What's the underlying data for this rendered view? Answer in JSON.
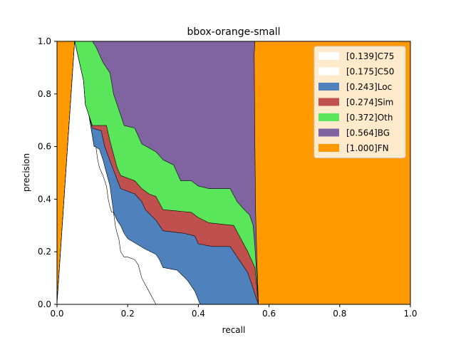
{
  "chart_data": {
    "type": "area",
    "title": "bbox-orange-small",
    "xlabel": "recall",
    "ylabel": "precision",
    "xlim": [
      0,
      1
    ],
    "ylim": [
      0,
      1
    ],
    "xticks": [
      "0.0",
      "0.2",
      "0.4",
      "0.6",
      "0.8",
      "1.0"
    ],
    "yticks": [
      "0.0",
      "0.2",
      "0.4",
      "0.6",
      "0.8",
      "1.0"
    ],
    "grid": false,
    "legend_position": "top-right",
    "series": [
      {
        "name": "[1.000]FN",
        "color": "#ff9900",
        "points": [
          [
            0.0,
            1.0
          ],
          [
            1.0,
            1.0
          ],
          [
            1.0,
            0.0
          ],
          [
            0.0,
            0.0
          ]
        ]
      },
      {
        "name": "[0.564]BG",
        "color": "#8064a2",
        "points": [
          [
            0.05,
            1.0
          ],
          [
            0.56,
            1.0
          ],
          [
            0.558,
            0.95
          ],
          [
            0.56,
            0.6
          ],
          [
            0.562,
            0.35
          ],
          [
            0.566,
            0.15
          ],
          [
            0.57,
            0.0
          ],
          [
            0.0,
            0.0
          ]
        ]
      },
      {
        "name": "[0.372]Oth",
        "color": "#5ae65a",
        "points": [
          [
            0.05,
            1.0
          ],
          [
            0.1,
            1.0
          ],
          [
            0.11,
            0.98
          ],
          [
            0.13,
            0.92
          ],
          [
            0.15,
            0.88
          ],
          [
            0.16,
            0.8
          ],
          [
            0.17,
            0.76
          ],
          [
            0.19,
            0.68
          ],
          [
            0.22,
            0.67
          ],
          [
            0.24,
            0.61
          ],
          [
            0.28,
            0.58
          ],
          [
            0.3,
            0.55
          ],
          [
            0.33,
            0.53
          ],
          [
            0.35,
            0.47
          ],
          [
            0.38,
            0.47
          ],
          [
            0.4,
            0.45
          ],
          [
            0.43,
            0.44
          ],
          [
            0.49,
            0.44
          ],
          [
            0.51,
            0.39
          ],
          [
            0.53,
            0.36
          ],
          [
            0.545,
            0.34
          ],
          [
            0.555,
            0.3
          ],
          [
            0.56,
            0.22
          ],
          [
            0.57,
            0.0
          ],
          [
            0.0,
            0.0
          ]
        ]
      },
      {
        "name": "[0.274]Sim",
        "color": "#c0504d",
        "points": [
          [
            0.05,
            1.0
          ],
          [
            0.075,
            0.85
          ],
          [
            0.08,
            0.76
          ],
          [
            0.09,
            0.72
          ],
          [
            0.1,
            0.68
          ],
          [
            0.14,
            0.68
          ],
          [
            0.15,
            0.62
          ],
          [
            0.17,
            0.52
          ],
          [
            0.18,
            0.49
          ],
          [
            0.2,
            0.48
          ],
          [
            0.22,
            0.47
          ],
          [
            0.24,
            0.44
          ],
          [
            0.26,
            0.42
          ],
          [
            0.28,
            0.41
          ],
          [
            0.3,
            0.36
          ],
          [
            0.38,
            0.35
          ],
          [
            0.4,
            0.33
          ],
          [
            0.43,
            0.31
          ],
          [
            0.5,
            0.3
          ],
          [
            0.52,
            0.25
          ],
          [
            0.54,
            0.2
          ],
          [
            0.56,
            0.14
          ],
          [
            0.57,
            0.0
          ],
          [
            0.0,
            0.0
          ]
        ]
      },
      {
        "name": "[0.243]Loc",
        "color": "#4f81bd",
        "points": [
          [
            0.05,
            1.0
          ],
          [
            0.075,
            0.85
          ],
          [
            0.08,
            0.76
          ],
          [
            0.09,
            0.72
          ],
          [
            0.1,
            0.67
          ],
          [
            0.125,
            0.66
          ],
          [
            0.135,
            0.6
          ],
          [
            0.16,
            0.51
          ],
          [
            0.18,
            0.44
          ],
          [
            0.22,
            0.42
          ],
          [
            0.24,
            0.39
          ],
          [
            0.25,
            0.36
          ],
          [
            0.28,
            0.32
          ],
          [
            0.3,
            0.28
          ],
          [
            0.36,
            0.27
          ],
          [
            0.39,
            0.26
          ],
          [
            0.4,
            0.23
          ],
          [
            0.44,
            0.22
          ],
          [
            0.49,
            0.22
          ],
          [
            0.52,
            0.16
          ],
          [
            0.54,
            0.12
          ],
          [
            0.57,
            0.0
          ],
          [
            0.0,
            0.0
          ]
        ]
      },
      {
        "name": "[0.175]C50",
        "color": "#ffffff",
        "points": [
          [
            0.05,
            1.0
          ],
          [
            0.075,
            0.85
          ],
          [
            0.08,
            0.76
          ],
          [
            0.09,
            0.72
          ],
          [
            0.1,
            0.64
          ],
          [
            0.105,
            0.6
          ],
          [
            0.12,
            0.59
          ],
          [
            0.13,
            0.55
          ],
          [
            0.14,
            0.5
          ],
          [
            0.15,
            0.45
          ],
          [
            0.16,
            0.35
          ],
          [
            0.17,
            0.32
          ],
          [
            0.18,
            0.3
          ],
          [
            0.19,
            0.27
          ],
          [
            0.2,
            0.25
          ],
          [
            0.25,
            0.21
          ],
          [
            0.28,
            0.19
          ],
          [
            0.29,
            0.17
          ],
          [
            0.3,
            0.14
          ],
          [
            0.34,
            0.13
          ],
          [
            0.37,
            0.09
          ],
          [
            0.39,
            0.05
          ],
          [
            0.405,
            0.0
          ],
          [
            0.0,
            0.0
          ]
        ]
      },
      {
        "name": "[0.139]C75",
        "color": "#ffffff",
        "points": [
          [
            0.05,
            1.0
          ],
          [
            0.075,
            0.85
          ],
          [
            0.08,
            0.76
          ],
          [
            0.09,
            0.72
          ],
          [
            0.1,
            0.64
          ],
          [
            0.105,
            0.6
          ],
          [
            0.11,
            0.6
          ],
          [
            0.115,
            0.55
          ],
          [
            0.12,
            0.52
          ],
          [
            0.13,
            0.49
          ],
          [
            0.14,
            0.45
          ],
          [
            0.145,
            0.4
          ],
          [
            0.15,
            0.37
          ],
          [
            0.155,
            0.35
          ],
          [
            0.16,
            0.35
          ],
          [
            0.165,
            0.3
          ],
          [
            0.17,
            0.27
          ],
          [
            0.175,
            0.25
          ],
          [
            0.18,
            0.2
          ],
          [
            0.185,
            0.19
          ],
          [
            0.19,
            0.18
          ],
          [
            0.2,
            0.18
          ],
          [
            0.22,
            0.17
          ],
          [
            0.23,
            0.15
          ],
          [
            0.24,
            0.1
          ],
          [
            0.26,
            0.05
          ],
          [
            0.28,
            0.0
          ],
          [
            0.0,
            0.0
          ]
        ]
      }
    ],
    "legend": [
      {
        "label": "[0.139]C75",
        "color": "#ffffff"
      },
      {
        "label": "[0.175]C50",
        "color": "#ffffff"
      },
      {
        "label": "[0.243]Loc",
        "color": "#4f81bd"
      },
      {
        "label": "[0.274]Sim",
        "color": "#c0504d"
      },
      {
        "label": "[0.372]Oth",
        "color": "#5ae65a"
      },
      {
        "label": "[0.564]BG",
        "color": "#8064a2"
      },
      {
        "label": "[1.000]FN",
        "color": "#ff9900"
      }
    ]
  }
}
